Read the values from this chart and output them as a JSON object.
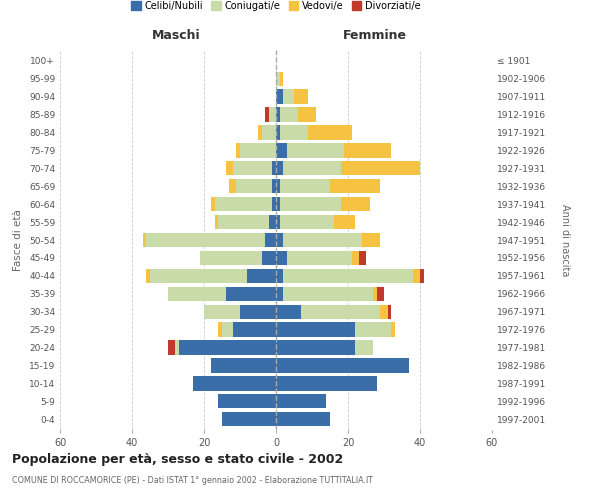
{
  "age_groups": [
    "0-4",
    "5-9",
    "10-14",
    "15-19",
    "20-24",
    "25-29",
    "30-34",
    "35-39",
    "40-44",
    "45-49",
    "50-54",
    "55-59",
    "60-64",
    "65-69",
    "70-74",
    "75-79",
    "80-84",
    "85-89",
    "90-94",
    "95-99",
    "100+"
  ],
  "birth_years": [
    "1997-2001",
    "1992-1996",
    "1987-1991",
    "1982-1986",
    "1977-1981",
    "1972-1976",
    "1967-1971",
    "1962-1966",
    "1957-1961",
    "1952-1956",
    "1947-1951",
    "1942-1946",
    "1937-1941",
    "1932-1936",
    "1927-1931",
    "1922-1926",
    "1917-1921",
    "1912-1916",
    "1907-1911",
    "1902-1906",
    "≤ 1901"
  ],
  "males": {
    "celibi": [
      15,
      16,
      23,
      18,
      27,
      12,
      10,
      14,
      8,
      4,
      3,
      2,
      1,
      1,
      1,
      0,
      0,
      0,
      0,
      0,
      0
    ],
    "coniugati": [
      0,
      0,
      0,
      0,
      1,
      3,
      10,
      16,
      27,
      17,
      33,
      14,
      16,
      10,
      11,
      10,
      4,
      2,
      0,
      0,
      0
    ],
    "vedovi": [
      0,
      0,
      0,
      0,
      0,
      1,
      0,
      0,
      1,
      0,
      1,
      1,
      1,
      2,
      2,
      1,
      1,
      0,
      0,
      0,
      0
    ],
    "divorziati": [
      0,
      0,
      0,
      0,
      2,
      0,
      0,
      0,
      0,
      0,
      0,
      0,
      0,
      0,
      0,
      0,
      0,
      1,
      0,
      0,
      0
    ]
  },
  "females": {
    "nubili": [
      15,
      14,
      28,
      37,
      22,
      22,
      7,
      2,
      2,
      3,
      2,
      1,
      1,
      1,
      2,
      3,
      1,
      1,
      2,
      0,
      0
    ],
    "coniugate": [
      0,
      0,
      0,
      0,
      5,
      10,
      22,
      25,
      36,
      18,
      22,
      15,
      17,
      14,
      16,
      16,
      8,
      5,
      3,
      1,
      0
    ],
    "vedove": [
      0,
      0,
      0,
      0,
      0,
      1,
      2,
      1,
      2,
      2,
      5,
      6,
      8,
      14,
      22,
      13,
      12,
      5,
      4,
      1,
      0
    ],
    "divorziate": [
      0,
      0,
      0,
      0,
      0,
      0,
      1,
      2,
      1,
      2,
      0,
      0,
      0,
      0,
      0,
      0,
      0,
      0,
      0,
      0,
      0
    ]
  },
  "colors": {
    "celibi": "#3a6ea8",
    "coniugati": "#c8dba8",
    "vedovi": "#f5c242",
    "divorziati": "#c0392b"
  },
  "title": "Popolazione per età, sesso e stato civile - 2002",
  "subtitle": "COMUNE DI ROCCAMORICE (PE) - Dati ISTAT 1° gennaio 2002 - Elaborazione TUTTITALIA.IT",
  "xlabel_left": "Maschi",
  "xlabel_right": "Femmine",
  "ylabel_left": "Fasce di età",
  "ylabel_right": "Anni di nascita",
  "xlim": 60,
  "background_color": "#ffffff",
  "grid_color": "#cccccc"
}
